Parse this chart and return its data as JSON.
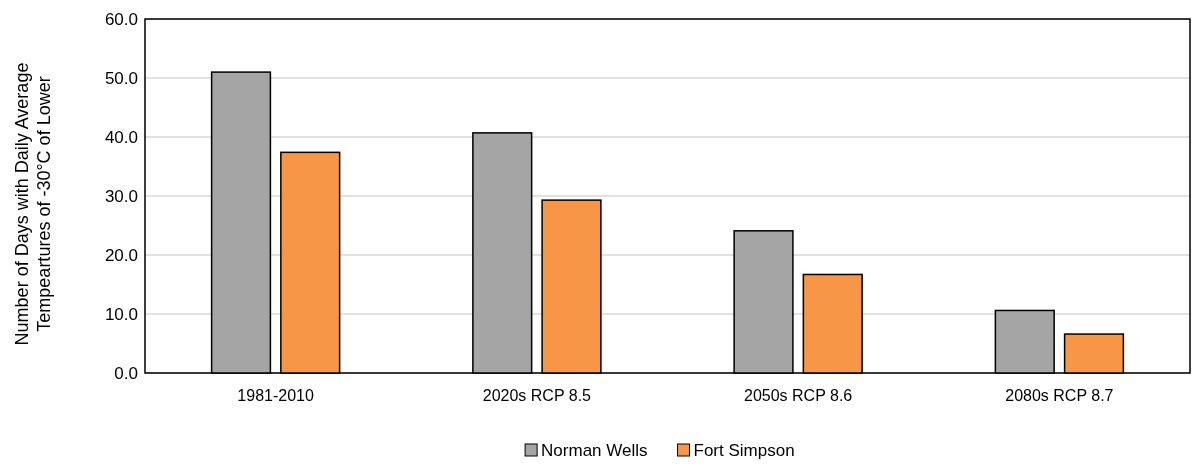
{
  "chart_data": {
    "type": "bar",
    "ylabel": "Number of Days with Daily Average\nTempeartures of -30°C of Lower",
    "categories": [
      "1981-2010",
      "2020s RCP 8.5",
      "2050s RCP 8.6",
      "2080s RCP 8.7"
    ],
    "series": [
      {
        "name": "Norman Wells",
        "color": "#a5a5a5",
        "values": [
          51.0,
          40.7,
          24.1,
          10.6
        ]
      },
      {
        "name": "Fort Simpson",
        "color": "#f79646",
        "values": [
          37.4,
          29.3,
          16.7,
          6.6
        ]
      }
    ],
    "ylim": [
      0,
      60
    ],
    "yticks": [
      {
        "value": 0,
        "label": "0.0"
      },
      {
        "value": 10,
        "label": "10.0"
      },
      {
        "value": 20,
        "label": "20.0"
      },
      {
        "value": 30,
        "label": "30.0"
      },
      {
        "value": 40,
        "label": "40.0"
      },
      {
        "value": 50,
        "label": "50.0"
      },
      {
        "value": 60,
        "label": "60.0"
      }
    ],
    "grid": "y",
    "legend": "bottom"
  }
}
